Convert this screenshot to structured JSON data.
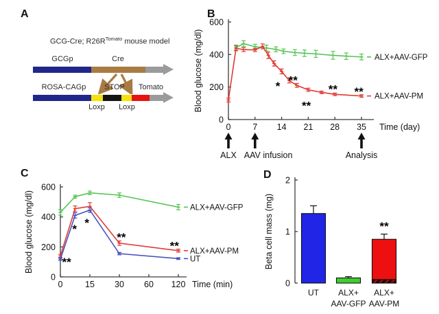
{
  "panels": {
    "a": {
      "label": "A",
      "title_pre": "GCG-Cre; R26R",
      "title_sup": "Tomato",
      "title_post": " mouse model",
      "construct1": {
        "promoter": "GCGp",
        "gene": "Cre"
      },
      "construct2": {
        "promoter": "ROSA-CAGp",
        "stop": "STOP",
        "gene": "Tomato",
        "loxp_left": "Loxp",
        "loxp_right": "Loxp"
      },
      "colors": {
        "promoter_blue": "#20268a",
        "cre_brown": "#a87b42",
        "arrow_gray": "#9b9b9b",
        "loxp_yellow": "#f2e20d",
        "stop_black": "#141414",
        "tomato_red": "#e51410"
      }
    },
    "b": {
      "label": "B"
    },
    "c": {
      "label": "C"
    },
    "d": {
      "label": "D"
    }
  },
  "chart_data": [
    {
      "id": "B",
      "type": "line",
      "xlabel": "Time (day)",
      "ylabel": "Blood glucose (mg/dl)",
      "x_scale": "linear",
      "x_ticks": [
        0,
        7,
        14,
        21,
        28,
        35
      ],
      "y_ticks": [
        0,
        200,
        400,
        600
      ],
      "ylim": [
        0,
        600
      ],
      "legend_position": "right-of-line-ends",
      "series": [
        {
          "name": "ALX+AAV-GFP",
          "color": "#55c452",
          "x": [
            2,
            4,
            7,
            10,
            12.5,
            14.5,
            17.5,
            20,
            23,
            27.5,
            31,
            35
          ],
          "values": [
            443,
            467,
            448,
            440,
            432,
            420,
            412,
            408,
            404,
            395,
            390,
            385
          ],
          "err": [
            15,
            18,
            15,
            18,
            15,
            14,
            18,
            20,
            22,
            24,
            20,
            18
          ]
        },
        {
          "name": "ALX+AAV-PM",
          "color": "#e03a32",
          "x": [
            0,
            2,
            4,
            7,
            9,
            10.5,
            12,
            14,
            16,
            18,
            21,
            24.5,
            28,
            35
          ],
          "values": [
            120,
            438,
            430,
            428,
            450,
            395,
            345,
            296,
            240,
            210,
            183,
            167,
            155,
            145
          ],
          "err": [
            12,
            15,
            12,
            10,
            15,
            20,
            16,
            15,
            15,
            12,
            10,
            8,
            8,
            8
          ]
        }
      ],
      "annotations": [
        {
          "x": 13,
          "y": 215,
          "text": "*"
        },
        {
          "x": 17,
          "y": 252,
          "text": "**"
        },
        {
          "x": 20.5,
          "y": 95,
          "text": "**"
        },
        {
          "x": 27.5,
          "y": 196,
          "text": "**"
        },
        {
          "x": 34.3,
          "y": 182,
          "text": "**"
        }
      ],
      "timeline_arrows": [
        {
          "x": 0,
          "label": "ALX"
        },
        {
          "x": 7,
          "label": "AAV infusion"
        },
        {
          "x": 35,
          "label": "Analysis"
        }
      ]
    },
    {
      "id": "C",
      "type": "line",
      "xlabel": "Time (min)",
      "ylabel": "Blood glucose (mg/dl)",
      "x_scale": "ordinal-between-ticks",
      "x_ticks": [
        0,
        15,
        30,
        60,
        120
      ],
      "y_ticks": [
        0,
        200,
        400,
        600
      ],
      "ylim": [
        0,
        600
      ],
      "legend_position": "right-of-line-ends",
      "series": [
        {
          "name": "ALX+AAV-GFP",
          "color": "#55c452",
          "x": [
            0,
            7.5,
            15,
            30,
            120
          ],
          "values": [
            430,
            535,
            560,
            545,
            465
          ],
          "err": [
            18,
            10,
            12,
            15,
            18
          ]
        },
        {
          "name": "ALX+AAV-PM",
          "color": "#e03a32",
          "x": [
            0,
            7.5,
            15,
            30,
            120
          ],
          "values": [
            140,
            455,
            470,
            225,
            175
          ],
          "err": [
            10,
            18,
            25,
            15,
            10
          ]
        },
        {
          "name": "UT",
          "color": "#4553c0",
          "x": [
            0,
            7.5,
            15,
            30,
            120
          ],
          "values": [
            118,
            410,
            445,
            155,
            122
          ],
          "err": [
            8,
            18,
            15,
            8,
            6
          ]
        }
      ],
      "annotations": [
        {
          "x": 3.2,
          "y": 110,
          "text": "**"
        },
        {
          "x": 7.2,
          "y": 330,
          "text": "*"
        },
        {
          "x": 13.5,
          "y": 370,
          "text": "*"
        },
        {
          "x": 32,
          "y": 275,
          "text": "**"
        },
        {
          "x": 112,
          "y": 218,
          "text": "**"
        }
      ],
      "timeline_arrows": []
    },
    {
      "id": "D",
      "type": "bar",
      "ylabel": "Beta cell mass (mg)",
      "y_ticks": [
        0,
        1,
        2
      ],
      "ylim": [
        0,
        2
      ],
      "categories": [
        [
          "UT"
        ],
        [
          "ALX+",
          "AAV-GFP"
        ],
        [
          "ALX+",
          "AAV-PM"
        ]
      ],
      "values": [
        1.35,
        0.1,
        0.85
      ],
      "errors": [
        0.15,
        0.025,
        0.1
      ],
      "colors": [
        "#2025e6",
        "#3ecf2e",
        "#ee1010"
      ],
      "hatched_base": {
        "bar_index": 2,
        "height_mg": 0.07,
        "fill": "#8f0f0f"
      },
      "annotations": [
        {
          "bar_index": 2,
          "text": "**"
        }
      ]
    }
  ]
}
